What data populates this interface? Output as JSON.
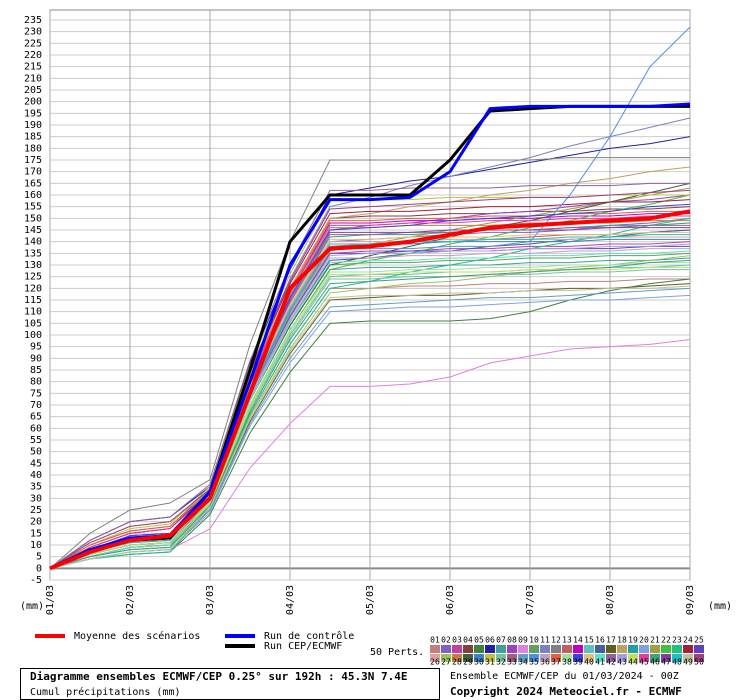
{
  "chart_data": {
    "type": "line",
    "title": "Diagramme ensembles ECMWF/CEP 0.25° sur 192h : 45.3N 7.4E",
    "subtitle": "Cumul précipitations (mm)",
    "y_label": "(mm)",
    "run_info": "Ensemble ECMWF/CEP du 01/03/2024 - 00Z",
    "copyright": "Copyright 2024 Meteociel.fr - ECMWF",
    "legend_title": "50 Perts.",
    "grid": true,
    "xlim": [
      0,
      8
    ],
    "xticks": [
      {
        "value": 0,
        "label": "01/03"
      },
      {
        "value": 1,
        "label": "02/03"
      },
      {
        "value": 2,
        "label": "03/03"
      },
      {
        "value": 3,
        "label": "04/03"
      },
      {
        "value": 4,
        "label": "05/03"
      },
      {
        "value": 5,
        "label": "06/03"
      },
      {
        "value": 6,
        "label": "07/03"
      },
      {
        "value": 7,
        "label": "08/03"
      },
      {
        "value": 8,
        "label": "09/03"
      }
    ],
    "ylim": [
      -5,
      235
    ],
    "yticks": [
      -5,
      0,
      5,
      10,
      15,
      20,
      25,
      30,
      35,
      40,
      45,
      50,
      55,
      60,
      65,
      70,
      75,
      80,
      85,
      90,
      95,
      100,
      105,
      110,
      115,
      120,
      125,
      130,
      135,
      140,
      145,
      150,
      155,
      160,
      165,
      170,
      175,
      180,
      185,
      190,
      195,
      200,
      205,
      210,
      215,
      220,
      225,
      230,
      235
    ],
    "x": [
      0,
      0.5,
      1,
      1.5,
      2,
      2.5,
      3,
      3.5,
      4,
      4.5,
      5,
      5.5,
      6,
      6.5,
      7,
      7.5,
      8
    ],
    "series": [
      {
        "name": "Moyenne des scénarios",
        "color": "#ff0000",
        "width": 4,
        "values": [
          0,
          7,
          12,
          14,
          30,
          75,
          120,
          137,
          138,
          140,
          143,
          146,
          147,
          148,
          149,
          150,
          153
        ]
      },
      {
        "name": "Run de contrôle",
        "color": "#0000ff",
        "width": 3,
        "values": [
          0,
          8,
          13,
          14,
          33,
          80,
          130,
          158,
          158,
          159,
          170,
          197,
          198,
          198,
          198,
          198,
          199
        ]
      },
      {
        "name": "Run CEP/ECMWF",
        "color": "#000000",
        "width": 3,
        "values": [
          0,
          8,
          12,
          13,
          33,
          85,
          140,
          160,
          160,
          160,
          175,
          196,
          197,
          198,
          198,
          198,
          198
        ]
      },
      {
        "name": "01",
        "color": "#c08080",
        "values": [
          0,
          6,
          10,
          11,
          26,
          66,
          96,
          120,
          120,
          121,
          121,
          122,
          122,
          123,
          123,
          124,
          124
        ]
      },
      {
        "name": "02",
        "color": "#8060c0",
        "values": [
          0,
          7,
          12,
          13,
          31,
          77,
          112,
          140,
          141,
          142,
          143,
          144,
          144,
          145,
          147,
          148,
          150
        ]
      },
      {
        "name": "03",
        "color": "#c040a0",
        "values": [
          0,
          5,
          8,
          9,
          30,
          74,
          108,
          135,
          136,
          136,
          137,
          137,
          138,
          138,
          139,
          139,
          140
        ]
      },
      {
        "name": "04",
        "color": "#804040",
        "values": [
          0,
          9,
          15,
          17,
          33,
          83,
          120,
          150,
          151,
          151,
          152,
          152,
          153,
          153,
          154,
          154,
          155
        ]
      },
      {
        "name": "05",
        "color": "#408040",
        "values": [
          0,
          4,
          6,
          7,
          23,
          58,
          84,
          105,
          106,
          106,
          106,
          107,
          110,
          115,
          119,
          122,
          124
        ]
      },
      {
        "name": "06",
        "color": "#2020a0",
        "values": [
          0,
          12,
          20,
          22,
          35,
          88,
          128,
          160,
          163,
          166,
          168,
          171,
          174,
          177,
          180,
          182,
          185
        ]
      },
      {
        "name": "07",
        "color": "#40a0a0",
        "values": [
          0,
          5,
          9,
          10,
          28,
          70,
          102,
          128,
          129,
          129,
          130,
          130,
          131,
          131,
          132,
          132,
          133
        ]
      },
      {
        "name": "08",
        "color": "#a040c0",
        "values": [
          0,
          7,
          11,
          12,
          32,
          80,
          116,
          145,
          147,
          148,
          150,
          152,
          153,
          155,
          157,
          158,
          160
        ]
      },
      {
        "name": "09",
        "color": "#e080e0",
        "values": [
          0,
          4,
          7,
          8,
          17,
          43,
          62,
          78,
          78,
          79,
          82,
          88,
          91,
          94,
          95,
          96,
          98
        ]
      },
      {
        "name": "10",
        "color": "#60a060",
        "values": [
          0,
          8,
          13,
          14,
          29,
          72,
          104,
          130,
          131,
          131,
          132,
          132,
          133,
          133,
          134,
          134,
          135
        ]
      },
      {
        "name": "11",
        "color": "#8080c0",
        "values": [
          0,
          10,
          16,
          18,
          34,
          85,
          124,
          155,
          159,
          164,
          168,
          172,
          176,
          181,
          185,
          189,
          193
        ]
      },
      {
        "name": "12",
        "color": "#808080",
        "values": [
          0,
          15,
          25,
          28,
          38,
          96,
          140,
          175,
          175,
          175,
          175,
          175,
          175,
          176,
          176,
          176,
          176
        ]
      },
      {
        "name": "13",
        "color": "#c06060",
        "values": [
          0,
          6,
          10,
          11,
          30,
          76,
          110,
          138,
          139,
          140,
          140,
          141,
          142,
          143,
          143,
          144,
          145
        ]
      },
      {
        "name": "14",
        "color": "#c000c0",
        "values": [
          0,
          8,
          14,
          15,
          33,
          81,
          118,
          148,
          148,
          149,
          149,
          150,
          150,
          151,
          151,
          152,
          152
        ]
      },
      {
        "name": "15",
        "color": "#60c0c0",
        "values": [
          0,
          5,
          8,
          9,
          28,
          69,
          100,
          125,
          126,
          126,
          127,
          127,
          128,
          128,
          129,
          129,
          130
        ]
      },
      {
        "name": "16",
        "color": "#4060a0",
        "values": [
          0,
          7,
          12,
          13,
          29,
          73,
          106,
          132,
          133,
          135,
          136,
          138,
          139,
          141,
          142,
          144,
          145
        ]
      },
      {
        "name": "17",
        "color": "#606020",
        "values": [
          0,
          5,
          9,
          10,
          25,
          63,
          92,
          115,
          116,
          117,
          117,
          118,
          119,
          120,
          120,
          121,
          122
        ]
      },
      {
        "name": "18",
        "color": "#c0a060",
        "values": [
          0,
          11,
          18,
          20,
          33,
          83,
          120,
          150,
          152,
          155,
          157,
          160,
          162,
          165,
          167,
          170,
          172
        ]
      },
      {
        "name": "19",
        "color": "#20a0a0",
        "values": [
          0,
          7,
          11,
          12,
          31,
          78,
          114,
          142,
          143,
          143,
          144,
          145,
          145,
          146,
          147,
          147,
          148
        ]
      },
      {
        "name": "20",
        "color": "#80a0e0",
        "values": [
          0,
          4,
          7,
          8,
          24,
          61,
          88,
          110,
          111,
          112,
          112,
          113,
          114,
          115,
          115,
          116,
          117
        ]
      },
      {
        "name": "21",
        "color": "#a0a040",
        "values": [
          0,
          8,
          13,
          14,
          30,
          75,
          109,
          136,
          139,
          142,
          145,
          148,
          151,
          154,
          157,
          160,
          163
        ]
      },
      {
        "name": "22",
        "color": "#40c040",
        "values": [
          0,
          6,
          10,
          11,
          28,
          70,
          102,
          128,
          132,
          135,
          139,
          142,
          146,
          149,
          153,
          156,
          160
        ]
      },
      {
        "name": "23",
        "color": "#20c080",
        "values": [
          0,
          4,
          6,
          7,
          26,
          66,
          96,
          120,
          123,
          127,
          130,
          133,
          137,
          140,
          143,
          147,
          150
        ]
      },
      {
        "name": "24",
        "color": "#a02040",
        "values": [
          0,
          9,
          15,
          17,
          33,
          84,
          122,
          152,
          153,
          153,
          154,
          155,
          155,
          156,
          157,
          157,
          158
        ]
      },
      {
        "name": "25",
        "color": "#6040c0",
        "values": [
          0,
          5,
          9,
          10,
          30,
          74,
          108,
          135,
          135,
          136,
          136,
          136,
          137,
          137,
          137,
          138,
          138
        ]
      },
      {
        "name": "26",
        "color": "#e0a0a0",
        "values": [
          0,
          7,
          12,
          13,
          31,
          77,
          112,
          140,
          140,
          140,
          141,
          141,
          141,
          141,
          142,
          142,
          142
        ]
      },
      {
        "name": "27",
        "color": "#a0c060",
        "values": [
          0,
          5,
          8,
          9,
          26,
          65,
          94,
          118,
          120,
          122,
          123,
          125,
          127,
          129,
          130,
          132,
          134
        ]
      },
      {
        "name": "28",
        "color": "#c08040",
        "values": [
          0,
          8,
          14,
          15,
          32,
          80,
          117,
          146,
          146,
          147,
          147,
          147,
          148,
          148,
          148,
          149,
          149
        ]
      },
      {
        "name": "29",
        "color": "#406040",
        "values": [
          0,
          6,
          10,
          11,
          29,
          72,
          104,
          130,
          134,
          138,
          142,
          146,
          149,
          153,
          157,
          161,
          165
        ]
      },
      {
        "name": "30",
        "color": "#4080c0",
        "values": [
          0,
          7,
          11,
          12,
          31,
          76,
          111,
          139,
          139,
          139,
          140,
          140,
          140,
          140,
          141,
          141,
          141
        ]
      },
      {
        "name": "31",
        "color": "#c0c040",
        "values": [
          0,
          10,
          17,
          19,
          35,
          87,
          126,
          158,
          158,
          158,
          159,
          159,
          159,
          159,
          160,
          160,
          160
        ]
      },
      {
        "name": "32",
        "color": "#80c0a0",
        "values": [
          0,
          5,
          9,
          10,
          27,
          68,
          99,
          124,
          124,
          125,
          125,
          126,
          126,
          127,
          127,
          128,
          128
        ]
      },
      {
        "name": "33",
        "color": "#a06080",
        "values": [
          0,
          8,
          13,
          14,
          31,
          79,
          114,
          143,
          143,
          144,
          144,
          145,
          145,
          146,
          146,
          147,
          147
        ]
      },
      {
        "name": "34",
        "color": "#60a0c0",
        "values": [
          0,
          4,
          7,
          8,
          25,
          62,
          90,
          112,
          113,
          114,
          115,
          116,
          116,
          117,
          118,
          119,
          120
        ]
      },
      {
        "name": "35",
        "color": "#5090e0",
        "values": [
          0,
          7,
          12,
          13,
          30,
          75,
          110,
          137,
          137,
          137,
          138,
          138,
          140,
          160,
          185,
          215,
          232
        ]
      },
      {
        "name": "36",
        "color": "#c0a0c0",
        "values": [
          0,
          6,
          10,
          11,
          29,
          73,
          106,
          133,
          133,
          134,
          134,
          135,
          135,
          136,
          136,
          137,
          137
        ]
      },
      {
        "name": "37",
        "color": "#e06040",
        "values": [
          0,
          10,
          16,
          18,
          33,
          82,
          119,
          149,
          149,
          150,
          150,
          151,
          151,
          152,
          152,
          153,
          153
        ]
      },
      {
        "name": "38",
        "color": "#a0e0a0",
        "values": [
          0,
          5,
          8,
          9,
          28,
          70,
          102,
          127,
          127,
          128,
          128,
          129,
          129,
          130,
          130,
          131,
          131
        ]
      },
      {
        "name": "39",
        "color": "#4040e0",
        "values": [
          0,
          8,
          14,
          15,
          32,
          80,
          116,
          145,
          146,
          147,
          149,
          150,
          151,
          152,
          153,
          155,
          156
        ]
      },
      {
        "name": "40",
        "color": "#e0c080",
        "values": [
          0,
          7,
          11,
          12,
          31,
          78,
          113,
          141,
          141,
          142,
          142,
          142,
          143,
          143,
          143,
          144,
          144
        ]
      },
      {
        "name": "41",
        "color": "#60e0c0",
        "values": [
          0,
          5,
          9,
          10,
          29,
          72,
          105,
          131,
          132,
          132,
          133,
          133,
          134,
          134,
          135,
          135,
          136
        ]
      },
      {
        "name": "42",
        "color": "#9060a0",
        "values": [
          0,
          12,
          20,
          22,
          36,
          89,
          130,
          162,
          162,
          163,
          163,
          163,
          164,
          164,
          164,
          165,
          165
        ]
      },
      {
        "name": "43",
        "color": "#a0a0e0",
        "values": [
          0,
          7,
          12,
          13,
          29,
          74,
          107,
          134,
          135,
          135,
          136,
          136,
          137,
          137,
          138,
          138,
          139
        ]
      },
      {
        "name": "44",
        "color": "#c0e060",
        "values": [
          0,
          6,
          10,
          11,
          28,
          69,
          101,
          126,
          126,
          127,
          127,
          127,
          128,
          128,
          128,
          129,
          129
        ]
      },
      {
        "name": "45",
        "color": "#e040a0",
        "values": [
          0,
          9,
          15,
          17,
          32,
          81,
          118,
          147,
          147,
          148,
          148,
          149,
          149,
          150,
          150,
          151,
          151
        ]
      },
      {
        "name": "46",
        "color": "#40a080",
        "values": [
          0,
          5,
          8,
          9,
          27,
          67,
          98,
          122,
          123,
          124,
          125,
          126,
          127,
          128,
          129,
          131,
          132
        ]
      },
      {
        "name": "47",
        "color": "#8040a0",
        "values": [
          0,
          8,
          13,
          14,
          32,
          79,
          115,
          144,
          144,
          144,
          145,
          145,
          145,
          145,
          146,
          146,
          146
        ]
      },
      {
        "name": "48",
        "color": "#20c0c0",
        "values": [
          0,
          7,
          11,
          12,
          31,
          76,
          111,
          139,
          139,
          140,
          140,
          141,
          141,
          142,
          142,
          143,
          143
        ]
      },
      {
        "name": "49",
        "color": "#c0c0a0",
        "values": [
          0,
          4,
          7,
          8,
          26,
          64,
          93,
          116,
          117,
          117,
          118,
          118,
          119,
          119,
          120,
          120,
          121
        ]
      },
      {
        "name": "50",
        "color": "#a04080",
        "values": [
          0,
          11,
          18,
          20,
          34,
          85,
          123,
          154,
          155,
          156,
          157,
          158,
          159,
          159,
          160,
          161,
          162
        ]
      }
    ]
  }
}
